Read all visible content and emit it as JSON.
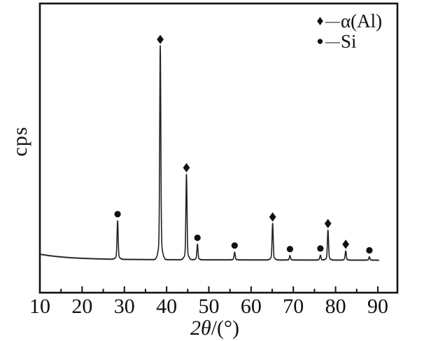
{
  "figure": {
    "y_axis_label": "cps",
    "x_axis_label_prefix": "2θ",
    "x_axis_label_suffix": "/(°)"
  },
  "legend": {
    "position": "top-right-inside",
    "items": [
      {
        "glyph": "♦",
        "marker": "diamond",
        "separator": "—",
        "label": "α(Al)"
      },
      {
        "glyph": "●",
        "marker": "circle",
        "separator": "—",
        "label": "Si"
      }
    ]
  },
  "colors": {
    "ink": "#111111",
    "trace": "#222222",
    "background": "#ffffff"
  },
  "chart_data": {
    "type": "line",
    "subtype": "xrd-diffraction-pattern",
    "title": "",
    "xlabel": "2θ/(°)",
    "ylabel": "cps",
    "x_range": [
      10,
      94.6
    ],
    "trace_x_end": 90.3,
    "x_ticks_major": [
      10,
      20,
      30,
      40,
      50,
      60,
      70,
      80,
      90
    ],
    "x_ticks_minor": [
      15,
      25,
      35,
      45,
      55,
      65,
      75,
      85
    ],
    "y_ticks": [],
    "y_axis_note": "intensity in cps, unlabeled arbitrary scale",
    "grid": false,
    "legend_position": "top-right",
    "background_profile": {
      "description": "baseline slightly elevated at low angle, decays to flat by ~25°",
      "start_excess_rel": 2.5,
      "settled_rel": 0
    },
    "peaks": [
      {
        "two_theta": 28.4,
        "phase": "Si",
        "rel_intensity": 18.0
      },
      {
        "two_theta": 38.5,
        "phase": "α(Al)",
        "rel_intensity": 100.0
      },
      {
        "two_theta": 44.7,
        "phase": "α(Al)",
        "rel_intensity": 40.0
      },
      {
        "two_theta": 47.3,
        "phase": "Si",
        "rel_intensity": 7.2
      },
      {
        "two_theta": 56.1,
        "phase": "Si",
        "rel_intensity": 3.6
      },
      {
        "two_theta": 65.1,
        "phase": "α(Al)",
        "rel_intensity": 17.0
      },
      {
        "two_theta": 69.2,
        "phase": "Si",
        "rel_intensity": 2.0
      },
      {
        "two_theta": 76.4,
        "phase": "Si",
        "rel_intensity": 2.3
      },
      {
        "two_theta": 78.2,
        "phase": "α(Al)",
        "rel_intensity": 14.0
      },
      {
        "two_theta": 82.4,
        "phase": "α(Al)",
        "rel_intensity": 4.3
      },
      {
        "two_theta": 88.0,
        "phase": "Si",
        "rel_intensity": 1.5
      }
    ]
  }
}
